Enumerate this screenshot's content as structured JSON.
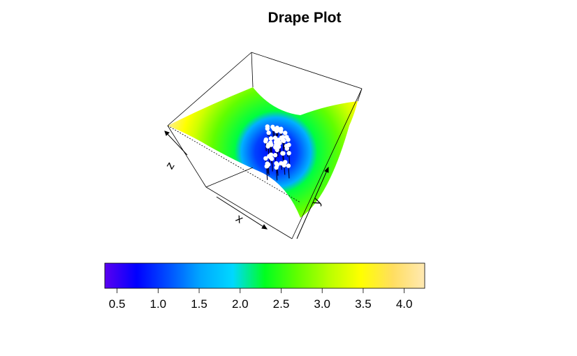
{
  "chart_data": {
    "type": "drape_surface_3d",
    "title": "Drape Plot",
    "axis_labels": {
      "x": "x",
      "y": "y",
      "z": "z"
    },
    "colorbar": {
      "range": [
        0.35,
        4.25
      ],
      "ticks": [
        0.5,
        1.0,
        1.5,
        2.0,
        2.5,
        3.0,
        3.5,
        4.0
      ],
      "tick_labels": [
        "0.5",
        "1.0",
        "1.5",
        "2.0",
        "2.5",
        "3.0",
        "3.5",
        "4.0"
      ],
      "colors": [
        "#5a00f0",
        "#0000ff",
        "#0050ff",
        "#00a8ff",
        "#00d8ff",
        "#00ff20",
        "#60ff00",
        "#b8ff00",
        "#ffff00",
        "#ffde60",
        "#ffe9b3"
      ]
    },
    "surface_color_range": [
      0.35,
      4.25
    ],
    "scatter_points": {
      "color": "#ffffff",
      "description_count": 60
    },
    "box": true,
    "grid": false
  }
}
